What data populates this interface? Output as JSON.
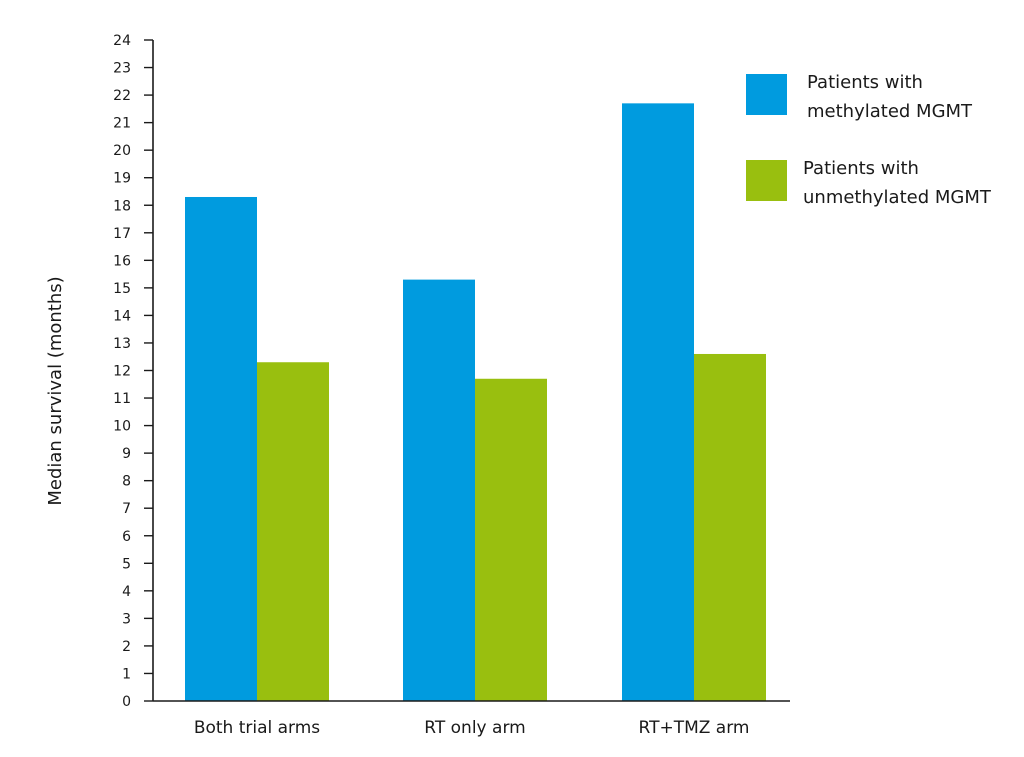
{
  "chart_data": {
    "type": "bar",
    "title": "",
    "xlabel": "",
    "ylabel": "Median survival (months)",
    "ylim": [
      0,
      24
    ],
    "yticks": [
      0,
      1,
      2,
      3,
      4,
      5,
      6,
      7,
      8,
      9,
      10,
      11,
      12,
      13,
      14,
      15,
      16,
      17,
      18,
      19,
      20,
      21,
      22,
      23,
      24
    ],
    "grid": false,
    "legend_position": "top-right",
    "categories": [
      "Both trial arms",
      "RT only arm",
      "RT+TMZ arm"
    ],
    "series": [
      {
        "name_lines": [
          "Patients with",
          "methylated MGMT"
        ],
        "color": "#009bdf",
        "values": [
          18.3,
          15.3,
          21.7
        ]
      },
      {
        "name_lines": [
          "Patients with",
          "unmethylated MGMT"
        ],
        "color": "#99bf0f",
        "values": [
          12.3,
          11.7,
          12.6
        ]
      }
    ]
  }
}
